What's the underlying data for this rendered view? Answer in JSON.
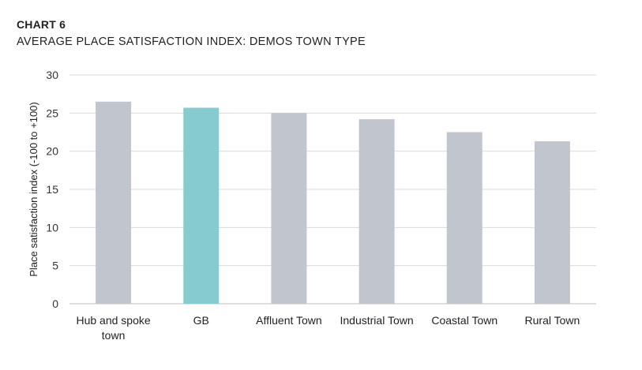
{
  "header": {
    "label": "CHART 6",
    "title": "AVERAGE PLACE SATISFACTION INDEX: DEMOS TOWN TYPE"
  },
  "chart_data": {
    "type": "bar",
    "categories": [
      [
        "Hub and spoke",
        "town"
      ],
      [
        "GB"
      ],
      [
        "Affluent Town"
      ],
      [
        "Industrial Town"
      ],
      [
        "Coastal Town"
      ],
      [
        "Rural Town"
      ]
    ],
    "values": [
      26.5,
      25.7,
      25.0,
      24.2,
      22.5,
      21.3
    ],
    "bar_colors": [
      "#c0c5ce",
      "#86cccf",
      "#c0c5ce",
      "#c0c5ce",
      "#c0c5ce",
      "#c0c5ce"
    ],
    "ylabel": "Place satisfaction index (-100 to +100)",
    "xlabel": "",
    "ylim": [
      0,
      30
    ],
    "yticks": [
      "0",
      "5",
      "10",
      "15",
      "20",
      "25",
      "30"
    ],
    "grid": true,
    "gridline_color": "#d9d9d9"
  }
}
